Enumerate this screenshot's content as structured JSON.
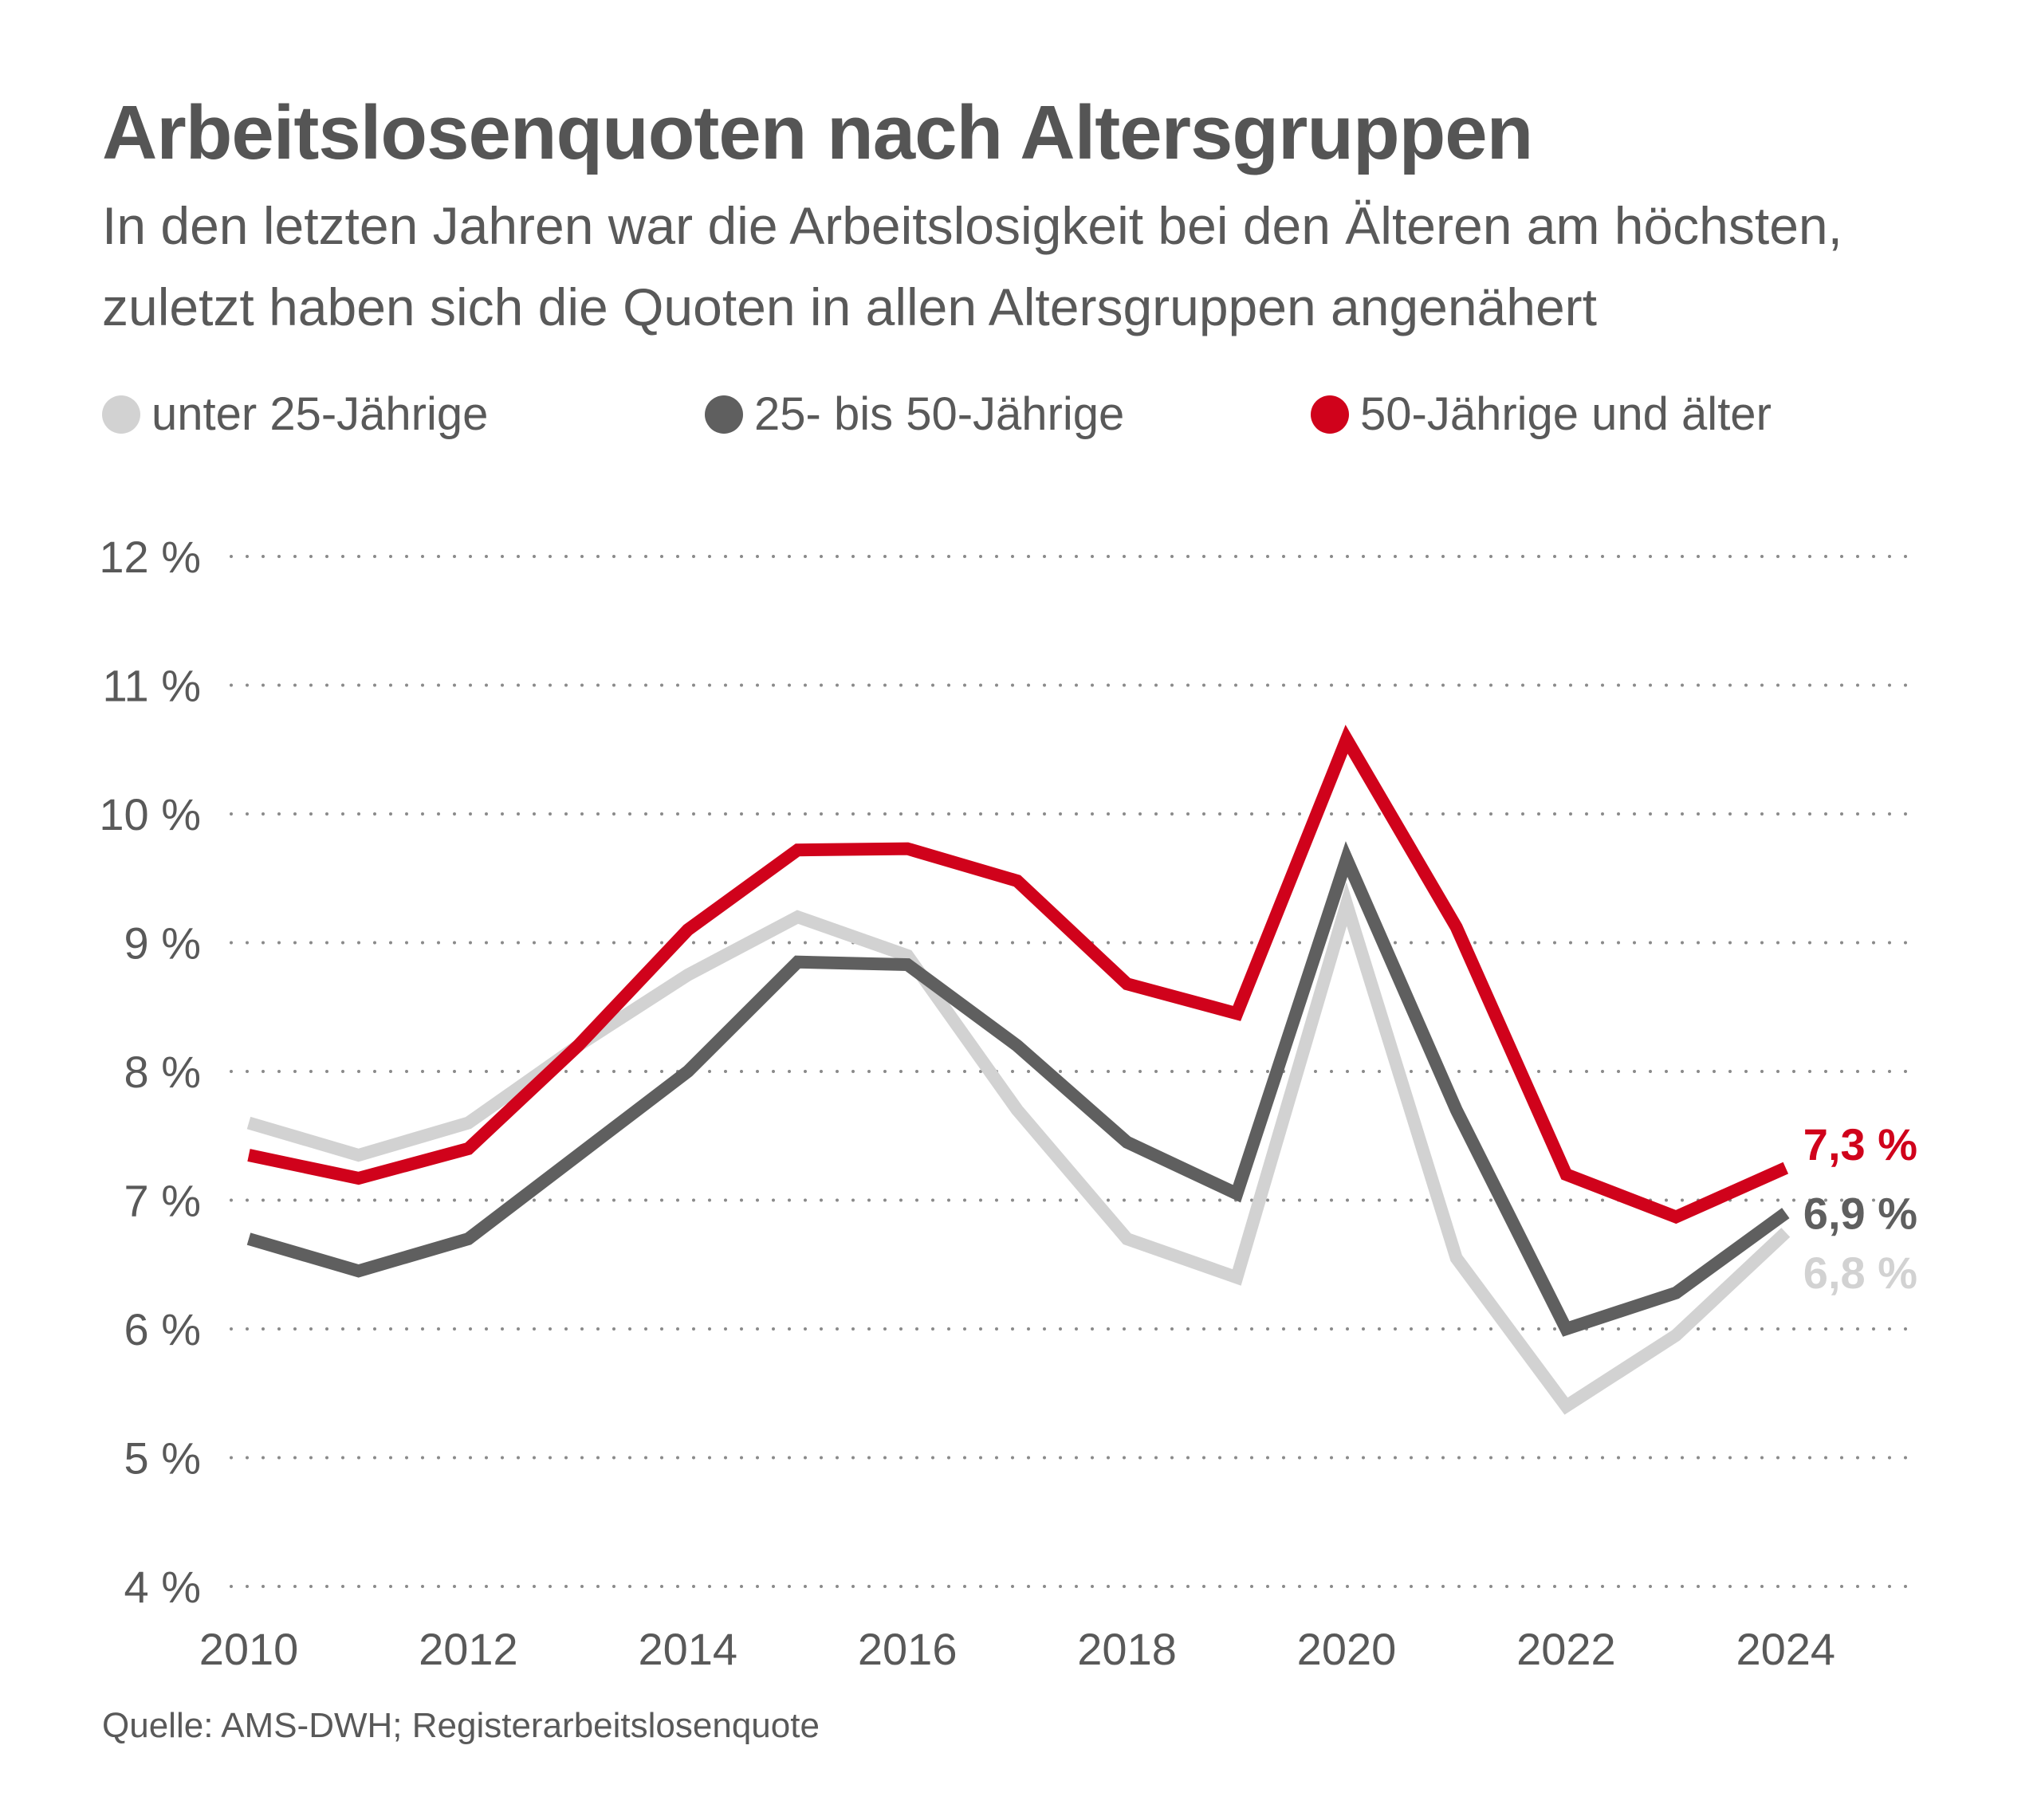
{
  "chart_data": {
    "type": "line",
    "title": "Arbeitslosenquoten nach Altersgruppen",
    "subtitle": "In den letzten Jahren war die Arbeitslosigkeit bei den Älteren am höchs­ten, zuletzt haben sich die Quoten in allen Altersgruppen angenähert",
    "x": [
      2010,
      2011,
      2012,
      2013,
      2014,
      2015,
      2016,
      2017,
      2018,
      2019,
      2020,
      2021,
      2022,
      2023,
      2024
    ],
    "x_tick_labels": [
      "2010",
      "2012",
      "2014",
      "2016",
      "2018",
      "2020",
      "2022",
      "2024"
    ],
    "y_tick_labels": [
      "12 %",
      "11 %",
      "10 %",
      "9 %",
      "8 %",
      "7 %",
      "6 %",
      "5 %",
      "4 %"
    ],
    "ylim": [
      4,
      12
    ],
    "xlim": [
      2010,
      2025.2
    ],
    "xlabel": "",
    "ylabel": "",
    "grid": true,
    "legend_position": "top",
    "series": [
      {
        "name": "unter 25-Jährige",
        "color": "#d2d2d2",
        "values": [
          7.6,
          7.35,
          7.6,
          8.2,
          8.75,
          9.2,
          8.9,
          7.7,
          6.7,
          6.4,
          9.3,
          6.55,
          5.4,
          5.95,
          6.75
        ],
        "end_label": "6,8 %"
      },
      {
        "name": "25- bis 50-Jährige",
        "color": "#5f5f5f",
        "values": [
          6.7,
          6.45,
          6.7,
          7.35,
          8.0,
          8.85,
          8.83,
          8.2,
          7.45,
          7.05,
          9.65,
          7.7,
          6.0,
          6.28,
          6.9
        ],
        "end_label": "6,9 %"
      },
      {
        "name": "50-Jährige und älter",
        "color": "#d0021b",
        "values": [
          7.35,
          7.17,
          7.4,
          8.2,
          9.1,
          9.72,
          9.73,
          9.48,
          8.68,
          8.45,
          10.58,
          9.12,
          7.2,
          6.87,
          7.25
        ],
        "end_label": "7,3 %"
      }
    ],
    "source": "Quelle: AMS-DWH; Registerarbeitslosenquote"
  }
}
